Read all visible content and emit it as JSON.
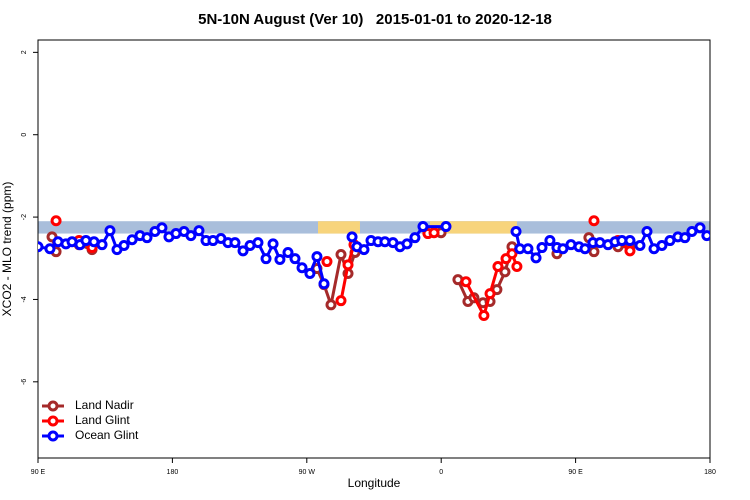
{
  "chart_data": {
    "type": "line",
    "title": "5N-10N August (Ver 10)   2015-01-01 to 2020-12-18",
    "x_label": "Longitude",
    "y_label": "XCO2 - MLO trend (ppm)",
    "xlim": [
      90,
      540
    ],
    "ylim": [
      -7.85,
      2.3
    ],
    "xticks": [
      {
        "value": 90,
        "label": "90 E"
      },
      {
        "value": 180,
        "label": "180"
      },
      {
        "value": 270,
        "label": "90 W"
      },
      {
        "value": 360,
        "label": "0"
      },
      {
        "value": 450,
        "label": "90 E"
      },
      {
        "value": 540,
        "label": "180"
      }
    ],
    "yticks": [
      2,
      0,
      -2,
      -4,
      -6
    ],
    "band": {
      "ylim": [
        -2.4,
        -2.1
      ],
      "color": "#a9bedb"
    },
    "land_bands": {
      "color": "#f7d47c",
      "ranges": [
        [
          277.5,
          305.6
        ],
        [
          352.5,
          410.7
        ]
      ]
    },
    "legend": "bottom-left",
    "series": [
      {
        "name": "Land Nadir",
        "color": "#a52a2a",
        "x": [
          99.4,
          102.1,
          null,
          117.5,
          126.2,
          null,
          276.8,
          281.5,
          286.2,
          292.9,
          297.6,
          302.3,
          null,
          359.9,
          null,
          371.2,
          377.9,
          381.9,
          388.0,
          392.7,
          397.3,
          402.7,
          407.4,
          null,
          437.5,
          null,
          458.9,
          462.3,
          null,
          478.4,
          486.4
        ],
        "values": [
          -2.48,
          -2.84,
          null,
          -2.67,
          -2.79,
          null,
          -3.25,
          -3.64,
          -4.13,
          -2.91,
          -3.37,
          -2.86,
          null,
          -2.38,
          null,
          -3.52,
          -4.05,
          -3.96,
          -4.08,
          -4.05,
          -3.76,
          -3.33,
          -2.72,
          null,
          -2.89,
          null,
          -2.5,
          -2.84,
          null,
          -2.72,
          -2.72
        ]
      },
      {
        "name": "Land Glint",
        "color": "#ff0000",
        "x": [
          102.1,
          null,
          117.5,
          126.2,
          null,
          283.5,
          null,
          292.9,
          297.6,
          301.6,
          null,
          351.1,
          355.2,
          null,
          376.6,
          388.6,
          392.7,
          398.0,
          403.4,
          407.4,
          410.7,
          null,
          462.3,
          null,
          478.4,
          486.4
        ],
        "values": [
          -2.09,
          null,
          -2.57,
          -2.74,
          null,
          -3.08,
          null,
          -4.03,
          -3.16,
          -2.67,
          null,
          -2.4,
          -2.38,
          null,
          -3.57,
          -4.39,
          -3.86,
          -3.2,
          -3.01,
          -2.89,
          -3.2,
          null,
          -2.09,
          null,
          -2.57,
          -2.82
        ]
      },
      {
        "name": "Ocean Glint",
        "color": "#0000ff",
        "x": [
          90,
          98.0,
          103.4,
          108.7,
          112.8,
          118.1,
          122.1,
          127.5,
          132.9,
          138.2,
          142.9,
          147.6,
          153.0,
          158.3,
          163.0,
          168.3,
          173.0,
          177.7,
          182.4,
          187.8,
          192.4,
          197.8,
          202.5,
          207.2,
          212.5,
          217.2,
          221.9,
          227.3,
          232.0,
          237.3,
          242.7,
          247.4,
          252.0,
          257.4,
          262.1,
          266.8,
          272.1,
          276.8,
          281.5,
          null,
          300.3,
          303.6,
          308.3,
          313.0,
          317.7,
          322.3,
          327.7,
          332.4,
          337.1,
          342.4,
          347.8,
          363.2,
          null,
          410.1,
          412.7,
          418.1,
          423.5,
          427.5,
          432.8,
          437.5,
          441.5,
          446.9,
          452.3,
          456.3,
          461.6,
          466.3,
          471.7,
          476.4,
          481.0,
          486.4,
          493.1,
          497.8,
          502.5,
          507.8,
          513.2,
          518.5,
          523.2,
          527.9,
          533.3,
          537.9
        ],
        "values": [
          -2.72,
          -2.77,
          -2.6,
          -2.65,
          -2.6,
          -2.67,
          -2.57,
          -2.6,
          -2.67,
          -2.33,
          -2.79,
          -2.69,
          -2.55,
          -2.45,
          -2.5,
          -2.35,
          -2.26,
          -2.48,
          -2.4,
          -2.35,
          -2.45,
          -2.33,
          -2.57,
          -2.57,
          -2.52,
          -2.62,
          -2.62,
          -2.82,
          -2.69,
          -2.62,
          -3.01,
          -2.65,
          -3.03,
          -2.86,
          -3.01,
          -3.23,
          -3.37,
          -2.96,
          -3.62,
          null,
          -2.48,
          -2.72,
          -2.79,
          -2.57,
          -2.6,
          -2.6,
          -2.62,
          -2.72,
          -2.65,
          -2.5,
          -2.23,
          -2.23,
          null,
          -2.35,
          -2.77,
          -2.77,
          -2.99,
          -2.74,
          -2.57,
          -2.74,
          -2.77,
          -2.67,
          -2.72,
          -2.77,
          -2.62,
          -2.62,
          -2.67,
          -2.6,
          -2.57,
          -2.57,
          -2.69,
          -2.35,
          -2.77,
          -2.69,
          -2.57,
          -2.48,
          -2.5,
          -2.35,
          -2.26,
          -2.45
        ]
      }
    ]
  }
}
